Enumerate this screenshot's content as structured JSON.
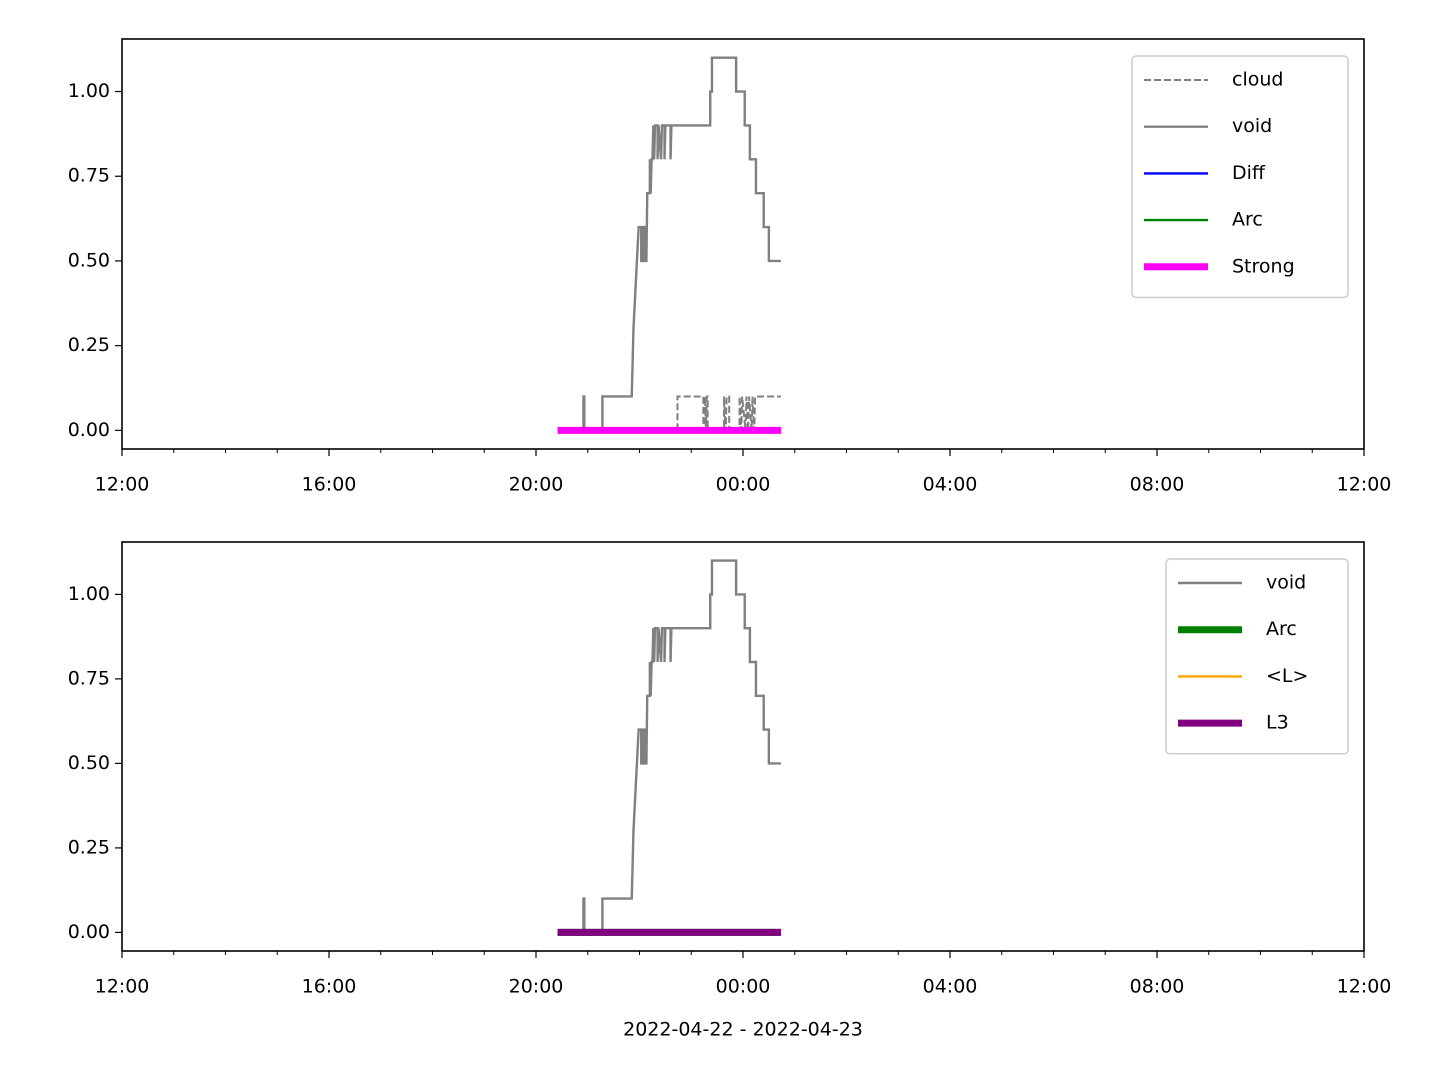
{
  "chart_data": [
    {
      "type": "line",
      "xlim": [
        "2022-04-22T12:00",
        "2022-04-23T12:00"
      ],
      "ylim": [
        -0.055,
        1.155
      ],
      "xticks": [
        {
          "value": "2022-04-22T12:00",
          "label": "12:00"
        },
        {
          "value": "2022-04-22T16:00",
          "label": "16:00"
        },
        {
          "value": "2022-04-22T20:00",
          "label": "20:00"
        },
        {
          "value": "2022-04-23T00:00",
          "label": "00:00"
        },
        {
          "value": "2022-04-23T04:00",
          "label": "04:00"
        },
        {
          "value": "2022-04-23T08:00",
          "label": "08:00"
        },
        {
          "value": "2022-04-23T12:00",
          "label": "12:00"
        }
      ],
      "xminorticks": [
        "2022-04-22T13:00",
        "2022-04-22T14:00",
        "2022-04-22T15:00",
        "2022-04-22T17:00",
        "2022-04-22T18:00",
        "2022-04-22T19:00",
        "2022-04-22T21:00",
        "2022-04-22T22:00",
        "2022-04-22T23:00",
        "2022-04-23T01:00",
        "2022-04-23T02:00",
        "2022-04-23T03:00",
        "2022-04-23T05:00",
        "2022-04-23T06:00",
        "2022-04-23T07:00",
        "2022-04-23T09:00",
        "2022-04-23T10:00",
        "2022-04-23T11:00"
      ],
      "yticks": [
        {
          "value": 0,
          "label": "0.00"
        },
        {
          "value": 0.25,
          "label": "0.25"
        },
        {
          "value": 0.5,
          "label": "0.50"
        },
        {
          "value": 0.75,
          "label": "0.75"
        },
        {
          "value": 1,
          "label": "1.00"
        }
      ],
      "legend": "upper right",
      "series": [
        {
          "name": "cloud",
          "color": "#808080",
          "dashed": true,
          "linewidth": 1,
          "x": [
            "2022-04-22T20:25",
            "2022-04-22T22:44",
            "2022-04-22T22:44",
            "2022-04-22T23:14",
            "2022-04-22T23:14",
            "2022-04-22T23:16",
            "2022-04-22T23:17",
            "2022-04-22T23:18",
            "2022-04-22T23:19",
            "2022-04-22T23:19",
            "2022-04-22T23:38",
            "2022-04-22T23:38",
            "2022-04-22T23:40",
            "2022-04-22T23:41",
            "2022-04-22T23:44",
            "2022-04-22T23:44",
            "2022-04-22T23:56",
            "2022-04-22T23:56",
            "2022-04-22T23:58",
            "2022-04-22T23:59",
            "2022-04-23T00:03",
            "2022-04-23T00:04",
            "2022-04-23T00:06",
            "2022-04-23T00:07",
            "2022-04-23T00:10",
            "2022-04-23T00:11",
            "2022-04-23T00:13",
            "2022-04-23T00:14",
            "2022-04-23T00:44"
          ],
          "values": [
            0,
            0,
            0.1,
            0.1,
            0,
            0.1,
            0,
            0.1,
            0.1,
            0,
            0,
            0.1,
            0,
            0.1,
            0.1,
            0,
            0,
            0.1,
            0,
            0.1,
            0,
            0.1,
            0,
            0.1,
            0,
            0.1,
            0,
            0.1,
            0.1
          ]
        },
        {
          "name": "void",
          "color": "#808080",
          "linewidth": 1.2,
          "x": [
            "2022-04-22T20:25",
            "2022-04-22T20:55",
            "2022-04-22T20:55",
            "2022-04-22T20:56",
            "2022-04-22T20:56",
            "2022-04-22T21:17",
            "2022-04-22T21:17",
            "2022-04-22T21:51",
            "2022-04-22T21:52",
            "2022-04-22T21:53",
            "2022-04-22T21:55",
            "2022-04-22T21:57",
            "2022-04-22T21:59",
            "2022-04-22T22:02",
            "2022-04-22T22:02",
            "2022-04-22T22:04",
            "2022-04-22T22:04",
            "2022-04-22T22:06",
            "2022-04-22T22:06",
            "2022-04-22T22:08",
            "2022-04-22T22:09",
            "2022-04-22T22:12",
            "2022-04-22T22:12",
            "2022-04-22T22:13",
            "2022-04-22T22:14",
            "2022-04-22T22:15",
            "2022-04-22T22:16",
            "2022-04-22T22:17",
            "2022-04-22T22:18",
            "2022-04-22T22:21",
            "2022-04-22T22:21",
            "2022-04-22T22:22",
            "2022-04-22T22:25",
            "2022-04-22T22:26",
            "2022-04-22T22:29",
            "2022-04-22T22:29",
            "2022-04-22T22:30",
            "2022-04-22T22:36",
            "2022-04-22T22:36",
            "2022-04-22T22:37",
            "2022-04-22T23:22",
            "2022-04-22T23:22",
            "2022-04-22T23:24",
            "2022-04-22T23:24",
            "2022-04-22T23:52",
            "2022-04-22T23:52",
            "2022-04-23T00:02",
            "2022-04-23T00:02",
            "2022-04-23T00:08",
            "2022-04-23T00:08",
            "2022-04-23T00:15",
            "2022-04-23T00:15",
            "2022-04-23T00:24",
            "2022-04-23T00:24",
            "2022-04-23T00:30",
            "2022-04-23T00:30",
            "2022-04-23T00:44"
          ],
          "values": [
            0,
            0,
            0.1,
            0.1,
            0,
            0,
            0.1,
            0.1,
            0.2,
            0.3,
            0.4,
            0.5,
            0.6,
            0.6,
            0.5,
            0.5,
            0.6,
            0.6,
            0.5,
            0.5,
            0.7,
            0.7,
            0.8,
            0.7,
            0.8,
            0.8,
            0.9,
            0.8,
            0.9,
            0.9,
            0.8,
            0.9,
            0.8,
            0.9,
            0.9,
            0.8,
            0.9,
            0.9,
            0.8,
            0.9,
            0.9,
            1.0,
            1.0,
            1.1,
            1.1,
            1.0,
            1.0,
            0.9,
            0.9,
            0.8,
            0.8,
            0.7,
            0.7,
            0.6,
            0.6,
            0.5,
            0.5
          ]
        },
        {
          "name": "Diff",
          "color": "#0000ff",
          "linewidth": 1.2,
          "x": [
            "2022-04-22T20:25",
            "2022-04-23T00:44"
          ],
          "values": [
            0,
            0
          ]
        },
        {
          "name": "Arc",
          "color": "#008000",
          "linewidth": 1.2,
          "x": [
            "2022-04-22T20:25",
            "2022-04-23T00:44"
          ],
          "values": [
            0,
            0
          ]
        },
        {
          "name": "Strong",
          "color": "#ff00ff",
          "linewidth": 3.5,
          "x": [
            "2022-04-22T20:25",
            "2022-04-23T00:44"
          ],
          "values": [
            0,
            0
          ]
        }
      ]
    },
    {
      "type": "line",
      "xlabel": "2022-04-22 - 2022-04-23",
      "xlim": [
        "2022-04-22T12:00",
        "2022-04-23T12:00"
      ],
      "ylim": [
        -0.055,
        1.155
      ],
      "xticks": [
        {
          "value": "2022-04-22T12:00",
          "label": "12:00"
        },
        {
          "value": "2022-04-22T16:00",
          "label": "16:00"
        },
        {
          "value": "2022-04-22T20:00",
          "label": "20:00"
        },
        {
          "value": "2022-04-23T00:00",
          "label": "00:00"
        },
        {
          "value": "2022-04-23T04:00",
          "label": "04:00"
        },
        {
          "value": "2022-04-23T08:00",
          "label": "08:00"
        },
        {
          "value": "2022-04-23T12:00",
          "label": "12:00"
        }
      ],
      "xminorticks": [
        "2022-04-22T13:00",
        "2022-04-22T14:00",
        "2022-04-22T15:00",
        "2022-04-22T17:00",
        "2022-04-22T18:00",
        "2022-04-22T19:00",
        "2022-04-22T21:00",
        "2022-04-22T22:00",
        "2022-04-22T23:00",
        "2022-04-23T01:00",
        "2022-04-23T02:00",
        "2022-04-23T03:00",
        "2022-04-23T05:00",
        "2022-04-23T06:00",
        "2022-04-23T07:00",
        "2022-04-23T09:00",
        "2022-04-23T10:00",
        "2022-04-23T11:00"
      ],
      "yticks": [
        {
          "value": 0,
          "label": "0.00"
        },
        {
          "value": 0.25,
          "label": "0.25"
        },
        {
          "value": 0.5,
          "label": "0.50"
        },
        {
          "value": 0.75,
          "label": "0.75"
        },
        {
          "value": 1,
          "label": "1.00"
        }
      ],
      "legend": "upper right",
      "series": [
        {
          "name": "void",
          "color": "#808080",
          "linewidth": 1.2,
          "x": [
            "2022-04-22T20:25",
            "2022-04-22T20:55",
            "2022-04-22T20:55",
            "2022-04-22T20:56",
            "2022-04-22T20:56",
            "2022-04-22T21:17",
            "2022-04-22T21:17",
            "2022-04-22T21:51",
            "2022-04-22T21:52",
            "2022-04-22T21:53",
            "2022-04-22T21:55",
            "2022-04-22T21:57",
            "2022-04-22T21:59",
            "2022-04-22T22:02",
            "2022-04-22T22:02",
            "2022-04-22T22:04",
            "2022-04-22T22:04",
            "2022-04-22T22:06",
            "2022-04-22T22:06",
            "2022-04-22T22:08",
            "2022-04-22T22:09",
            "2022-04-22T22:12",
            "2022-04-22T22:12",
            "2022-04-22T22:13",
            "2022-04-22T22:14",
            "2022-04-22T22:15",
            "2022-04-22T22:16",
            "2022-04-22T22:17",
            "2022-04-22T22:18",
            "2022-04-22T22:21",
            "2022-04-22T22:21",
            "2022-04-22T22:22",
            "2022-04-22T22:25",
            "2022-04-22T22:26",
            "2022-04-22T22:29",
            "2022-04-22T22:29",
            "2022-04-22T22:30",
            "2022-04-22T22:36",
            "2022-04-22T22:36",
            "2022-04-22T22:37",
            "2022-04-22T23:22",
            "2022-04-22T23:22",
            "2022-04-22T23:24",
            "2022-04-22T23:24",
            "2022-04-22T23:52",
            "2022-04-22T23:52",
            "2022-04-23T00:02",
            "2022-04-23T00:02",
            "2022-04-23T00:08",
            "2022-04-23T00:08",
            "2022-04-23T00:15",
            "2022-04-23T00:15",
            "2022-04-23T00:24",
            "2022-04-23T00:24",
            "2022-04-23T00:30",
            "2022-04-23T00:30",
            "2022-04-23T00:44"
          ],
          "values": [
            0,
            0,
            0.1,
            0.1,
            0,
            0,
            0.1,
            0.1,
            0.2,
            0.3,
            0.4,
            0.5,
            0.6,
            0.6,
            0.5,
            0.5,
            0.6,
            0.6,
            0.5,
            0.5,
            0.7,
            0.7,
            0.8,
            0.7,
            0.8,
            0.8,
            0.9,
            0.8,
            0.9,
            0.9,
            0.8,
            0.9,
            0.8,
            0.9,
            0.9,
            0.8,
            0.9,
            0.9,
            0.8,
            0.9,
            0.9,
            1.0,
            1.0,
            1.1,
            1.1,
            1.0,
            1.0,
            0.9,
            0.9,
            0.8,
            0.8,
            0.7,
            0.7,
            0.6,
            0.6,
            0.5,
            0.5
          ]
        },
        {
          "name": "Arc",
          "color": "#008000",
          "linewidth": 3.5,
          "x": [
            "2022-04-22T20:25",
            "2022-04-23T00:44"
          ],
          "values": [
            0,
            0
          ]
        },
        {
          "name": "<L>",
          "color": "#ffa500",
          "linewidth": 1.2,
          "x": [
            "2022-04-22T20:25",
            "2022-04-23T00:44"
          ],
          "values": [
            0,
            0
          ]
        },
        {
          "name": "L3",
          "color": "#800080",
          "linewidth": 3.5,
          "x": [
            "2022-04-22T20:25",
            "2022-04-23T00:44"
          ],
          "values": [
            0,
            0
          ]
        }
      ]
    }
  ]
}
